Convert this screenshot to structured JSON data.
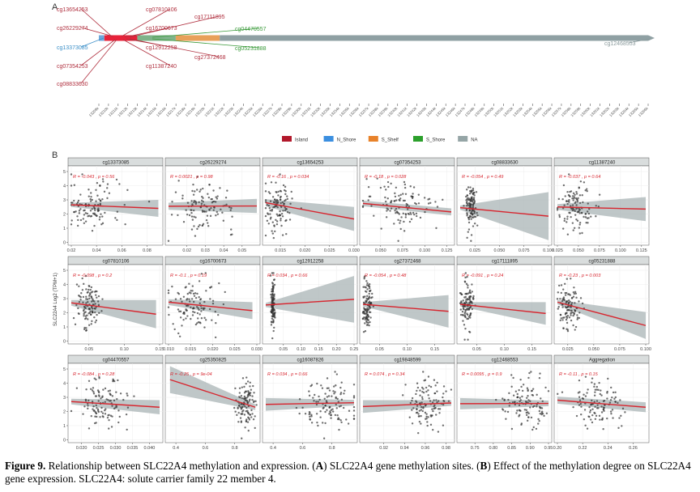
{
  "caption": {
    "figure_label": "Figure 9.",
    "text_1": " Relationship between SLC22A4 methylation and expression. (",
    "A": "A",
    "text_2": ") SLC22A4 gene methylation sites. (",
    "B": "B",
    "text_3": ") Effect of the methylation degree on SLC22A4 gene expression. SLC22A4: solute carrier family 22 member 4."
  },
  "chart_data": [
    {
      "type": "diagram",
      "panel_label": "A",
      "title": "SLC22A4 gene methylation sites",
      "legend": {
        "placement": "bottom",
        "entries": [
          {
            "name": "Island",
            "color": "#b2182b"
          },
          {
            "name": "N_Shore",
            "color": "#3b8fe0"
          },
          {
            "name": "S_Shelf",
            "color": "#e8822a"
          },
          {
            "name": "S_Shore",
            "color": "#2ca02c"
          },
          {
            "name": "NA",
            "color": "#95a5a6"
          }
        ]
      },
      "region_colors": {
        "N_Shore": "#6fa8dc",
        "Island": "#e8223a",
        "S_Shore": "#7fb38a",
        "S_Shelf": "#e8a05a",
        "NA": "#8fa0a3"
      },
      "region_segments": [
        {
          "region": "N_Shore",
          "from": 0.0,
          "to": 0.01
        },
        {
          "region": "Island",
          "from": 0.01,
          "to": 0.07
        },
        {
          "region": "S_Shore",
          "from": 0.07,
          "to": 0.14
        },
        {
          "region": "S_Shelf",
          "from": 0.14,
          "to": 0.22
        },
        {
          "region": "NA",
          "from": 0.22,
          "to": 1.0
        }
      ],
      "sites": [
        {
          "id": "cg13654253",
          "region": "Island",
          "color": "#b0303f"
        },
        {
          "id": "cg26229274",
          "region": "Island",
          "color": "#b0303f"
        },
        {
          "id": "cg13373085",
          "region": "N_Shore",
          "color": "#3b8fc8"
        },
        {
          "id": "cg07354253",
          "region": "Island",
          "color": "#b0303f"
        },
        {
          "id": "cg08833630",
          "region": "Island",
          "color": "#b0303f"
        },
        {
          "id": "cg07810106",
          "region": "Island",
          "color": "#b0303f"
        },
        {
          "id": "cg16700673",
          "region": "Island",
          "color": "#b0303f"
        },
        {
          "id": "cg12912258",
          "region": "Island",
          "color": "#b0303f"
        },
        {
          "id": "cg11387240",
          "region": "Island",
          "color": "#b0303f"
        },
        {
          "id": "cg17111895",
          "region": "Island",
          "color": "#b0303f"
        },
        {
          "id": "cg27372468",
          "region": "Island",
          "color": "#b0303f"
        },
        {
          "id": "cg04470557",
          "region": "S_Shore",
          "color": "#3a9a3a"
        },
        {
          "id": "cg05231888",
          "region": "S_Shore",
          "color": "#3a9a3a"
        },
        {
          "id": "cg12468553",
          "region": "NA",
          "color": "#8a9a9c"
        }
      ],
      "x_ticks": [
        "13209k",
        "13210k",
        "13211k",
        "13212k",
        "13213k",
        "13214k",
        "13215k",
        "13216k",
        "13217k",
        "13218k",
        "13219k",
        "13220k",
        "13221k",
        "13222k",
        "13223k",
        "13224k",
        "13225k",
        "13226k",
        "13227k",
        "13228k",
        "13229k",
        "13230k",
        "13231k",
        "13232k",
        "13233k",
        "13234k",
        "13235k",
        "13236k",
        "13237k",
        "13238k",
        "13239k",
        "13240k",
        "13241k",
        "13242k",
        "13243k",
        "13244k",
        "13245k",
        "13246k",
        "13247k",
        "13248k",
        "13249k",
        "13250k",
        "13251k",
        "13252k",
        "13253k",
        "13254k",
        "13255k",
        "13256k",
        "13257k",
        "13258k",
        "13259k",
        "13260k",
        "13261k",
        "13262k",
        "13263k",
        "13264k",
        "13265k",
        "13266k"
      ]
    },
    {
      "type": "scatter",
      "panel_label": "B",
      "title": "Effect of the methylation degree on SLC22A4 gene expression",
      "ylabel": "SLC22A4 Log2 (TPM+1)",
      "ylim": [
        0,
        5
      ],
      "yticks": [
        0,
        1,
        2,
        3,
        4,
        5
      ],
      "grid": true,
      "point_color": "#333333",
      "line_color": "#d7262f",
      "band_color": "#a9b4b6",
      "annotation_color": "#d7262f",
      "facets": [
        {
          "title": "cg13373085",
          "R": "-0.043",
          "p": "0.56",
          "xlim": [
            0.02,
            0.09
          ],
          "xticks": [
            "0.02",
            "0.04",
            "0.06",
            "0.08"
          ],
          "xtick_vals": [
            0.02,
            0.04,
            0.06,
            0.08
          ],
          "fit": [
            [
              0.02,
              2.65
            ],
            [
              0.089,
              2.4
            ]
          ],
          "band_width": [
            0.15,
            0.6
          ],
          "x_center": 0.035,
          "x_spread": 0.012
        },
        {
          "title": "cg26229274",
          "R": "0.0021",
          "p": "0.98",
          "xlim": [
            0.01,
            0.058
          ],
          "xticks": [
            "0.02",
            "0.03",
            "0.04",
            "0.05"
          ],
          "xtick_vals": [
            0.02,
            0.03,
            0.04,
            0.05
          ],
          "fit": [
            [
              0.01,
              2.55
            ],
            [
              0.058,
              2.57
            ]
          ],
          "band_width": [
            0.25,
            0.5
          ],
          "x_center": 0.03,
          "x_spread": 0.008
        },
        {
          "title": "cg13654253",
          "R": "-0.16",
          "p": "0.034",
          "xlim": [
            0.012,
            0.03
          ],
          "xticks": [
            "0.015",
            "0.020",
            "0.025",
            "0.030"
          ],
          "xtick_vals": [
            0.015,
            0.02,
            0.025,
            0.03
          ],
          "fit": [
            [
              0.012,
              2.8
            ],
            [
              0.03,
              1.65
            ]
          ],
          "band_width": [
            0.25,
            0.85
          ],
          "x_center": 0.0145,
          "x_spread": 0.0015
        },
        {
          "title": "cg07354253",
          "R": "-0.18",
          "p": "0.028",
          "xlim": [
            0.03,
            0.13
          ],
          "xticks": [
            "0.050",
            "0.075",
            "0.100",
            "0.125"
          ],
          "xtick_vals": [
            0.05,
            0.075,
            0.1,
            0.125
          ],
          "fit": [
            [
              0.03,
              2.75
            ],
            [
              0.13,
              2.15
            ]
          ],
          "band_width": [
            0.2,
            0.25
          ],
          "x_center": 0.075,
          "x_spread": 0.022
        },
        {
          "title": "cg08833630",
          "R": "-0.054",
          "p": "0.49",
          "xlim": [
            0.01,
            0.1
          ],
          "xticks": [
            "0.025",
            "0.050",
            "0.075",
            "0.100"
          ],
          "xtick_vals": [
            0.025,
            0.05,
            0.075,
            0.1
          ],
          "fit": [
            [
              0.01,
              2.45
            ],
            [
              0.1,
              1.85
            ]
          ],
          "band_width": [
            0.15,
            1.7
          ],
          "x_center": 0.021,
          "x_spread": 0.003
        },
        {
          "title": "cg11387240",
          "R": "-0.037",
          "p": "0.64",
          "xlim": [
            0.025,
            0.13
          ],
          "xticks": [
            "0.025",
            "0.050",
            "0.075",
            "0.100",
            "0.125"
          ],
          "xtick_vals": [
            0.025,
            0.05,
            0.075,
            0.1,
            0.125
          ],
          "fit": [
            [
              0.025,
              2.5
            ],
            [
              0.13,
              2.35
            ]
          ],
          "band_width": [
            0.2,
            0.85
          ],
          "x_center": 0.048,
          "x_spread": 0.01
        },
        {
          "title": "cg07810106",
          "R": "-0.098",
          "p": "0.2",
          "xlim": [
            0.025,
            0.15
          ],
          "xticks": [
            "0.05",
            "0.10",
            "0.15"
          ],
          "xtick_vals": [
            0.05,
            0.1,
            0.15
          ],
          "fit": [
            [
              0.025,
              2.7
            ],
            [
              0.145,
              1.9
            ]
          ],
          "band_width": [
            0.2,
            1.0
          ],
          "x_center": 0.048,
          "x_spread": 0.008
        },
        {
          "title": "cg16700673",
          "R": "-0.1",
          "p": "0.19",
          "xlim": [
            0.01,
            0.03
          ],
          "xticks": [
            "0.010",
            "0.015",
            "0.020",
            "0.025",
            "0.030"
          ],
          "xtick_vals": [
            0.01,
            0.015,
            0.02,
            0.025,
            0.03
          ],
          "fit": [
            [
              0.01,
              2.75
            ],
            [
              0.029,
              2.15
            ]
          ],
          "band_width": [
            0.2,
            0.6
          ],
          "x_center": 0.016,
          "x_spread": 0.003
        },
        {
          "title": "cg12912258",
          "R": "0.034",
          "p": "0.66",
          "xlim": [
            0.0,
            0.25
          ],
          "xticks": [
            "0.05",
            "0.10",
            "0.15",
            "0.20",
            "0.25"
          ],
          "xtick_vals": [
            0.05,
            0.1,
            0.15,
            0.2,
            0.25
          ],
          "fit": [
            [
              0.0,
              2.55
            ],
            [
              0.25,
              2.95
            ]
          ],
          "band_width": [
            0.15,
            1.65
          ],
          "x_center": 0.02,
          "x_spread": 0.003
        },
        {
          "title": "cg27372468",
          "R": "-0.054",
          "p": "0.48",
          "xlim": [
            0.02,
            0.18
          ],
          "xticks": [
            "0.05",
            "0.10",
            "0.15"
          ],
          "xtick_vals": [
            0.05,
            0.1,
            0.15
          ],
          "fit": [
            [
              0.02,
              2.6
            ],
            [
              0.175,
              2.1
            ]
          ],
          "band_width": [
            0.15,
            1.15
          ],
          "x_center": 0.028,
          "x_spread": 0.004
        },
        {
          "title": "cg17111895",
          "R": "-0.091",
          "p": "0.24",
          "xlim": [
            0.02,
            0.18
          ],
          "xticks": [
            "0.05",
            "0.10",
            "0.15"
          ],
          "xtick_vals": [
            0.05,
            0.1,
            0.15
          ],
          "fit": [
            [
              0.02,
              2.6
            ],
            [
              0.175,
              1.95
            ]
          ],
          "band_width": [
            0.15,
            0.8
          ],
          "x_center": 0.032,
          "x_spread": 0.006
        },
        {
          "title": "cg05231888",
          "R": "-0.23",
          "p": "0.003",
          "xlim": [
            0.015,
            0.1
          ],
          "xticks": [
            "0.025",
            "0.050",
            "0.075",
            "0.100"
          ],
          "xtick_vals": [
            0.025,
            0.05,
            0.075,
            0.1
          ],
          "fit": [
            [
              0.015,
              2.75
            ],
            [
              0.1,
              1.1
            ]
          ],
          "band_width": [
            0.15,
            0.95
          ],
          "x_center": 0.026,
          "x_spread": 0.005
        },
        {
          "title": "cg04470557",
          "R": "-0.084",
          "p": "0.28",
          "xlim": [
            0.017,
            0.043
          ],
          "xticks": [
            "0.020",
            "0.025",
            "0.030",
            "0.035",
            "0.040"
          ],
          "xtick_vals": [
            0.02,
            0.025,
            0.03,
            0.035,
            0.04
          ],
          "fit": [
            [
              0.017,
              2.7
            ],
            [
              0.043,
              2.3
            ]
          ],
          "band_width": [
            0.2,
            0.5
          ],
          "x_center": 0.026,
          "x_spread": 0.004
        },
        {
          "title": "cg25350825",
          "R": "-0.25",
          "p": "9e-04",
          "xlim": [
            0.35,
            0.95
          ],
          "xticks": [
            "0.4",
            "0.6",
            "0.8"
          ],
          "xtick_vals": [
            0.4,
            0.6,
            0.8
          ],
          "fit": [
            [
              0.36,
              4.25
            ],
            [
              0.94,
              2.3
            ]
          ],
          "band_width": [
            0.95,
            0.2
          ],
          "x_center": 0.88,
          "x_spread": 0.04
        },
        {
          "title": "cg16087826",
          "R": "0.034",
          "p": "0.66",
          "xlim": [
            0.35,
            0.95
          ],
          "xticks": [
            "0.4",
            "0.6",
            "0.8"
          ],
          "xtick_vals": [
            0.4,
            0.6,
            0.8
          ],
          "fit": [
            [
              0.35,
              2.5
            ],
            [
              0.95,
              2.62
            ]
          ],
          "band_width": [
            0.45,
            0.2
          ],
          "x_center": 0.8,
          "x_spread": 0.1
        },
        {
          "title": "cg19848599",
          "R": "0.074",
          "p": "0.34",
          "xlim": [
            0.9,
            0.985
          ],
          "xticks": [
            "0.92",
            "0.94",
            "0.96",
            "0.98"
          ],
          "xtick_vals": [
            0.92,
            0.94,
            0.96,
            0.98
          ],
          "fit": [
            [
              0.9,
              2.35
            ],
            [
              0.985,
              2.6
            ]
          ],
          "band_width": [
            0.45,
            0.2
          ],
          "x_center": 0.962,
          "x_spread": 0.009
        },
        {
          "title": "cg12468553",
          "R": "0.0095",
          "p": "0.9",
          "xlim": [
            0.71,
            0.95
          ],
          "xticks": [
            "0.75",
            "0.80",
            "0.85",
            "0.90",
            "0.95"
          ],
          "xtick_vals": [
            0.75,
            0.8,
            0.85,
            0.9,
            0.95
          ],
          "fit": [
            [
              0.71,
              2.55
            ],
            [
              0.95,
              2.57
            ]
          ],
          "band_width": [
            0.4,
            0.2
          ],
          "x_center": 0.89,
          "x_spread": 0.03
        },
        {
          "title": "Aggregation",
          "R": "-0.11",
          "p": "0.15",
          "xlim": [
            0.2,
            0.27
          ],
          "xticks": [
            "0.20",
            "0.22",
            "0.24",
            "0.26"
          ],
          "xtick_vals": [
            0.2,
            0.22,
            0.24,
            0.26
          ],
          "fit": [
            [
              0.2,
              2.8
            ],
            [
              0.27,
              2.3
            ]
          ],
          "band_width": [
            0.25,
            0.35
          ],
          "x_center": 0.232,
          "x_spread": 0.01
        }
      ]
    }
  ]
}
